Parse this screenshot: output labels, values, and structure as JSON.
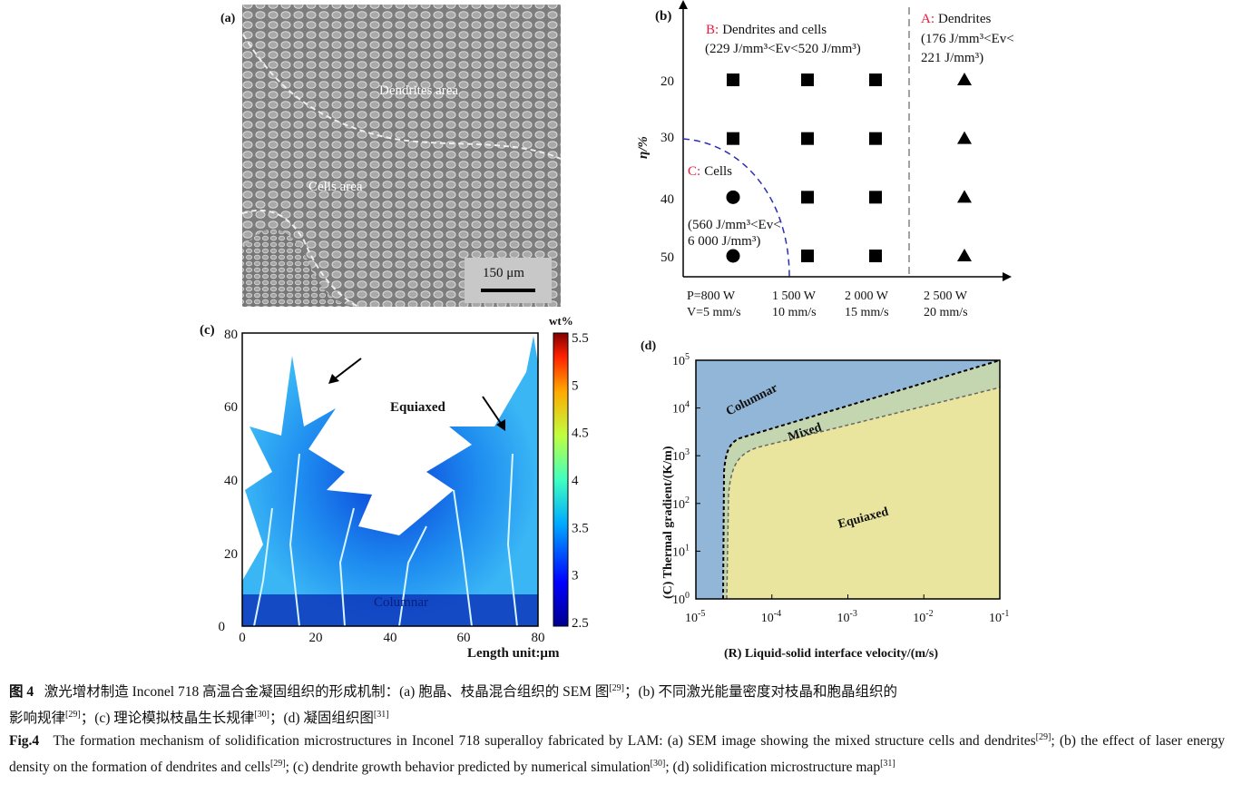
{
  "panel_a": {
    "label": "(a)",
    "dendrites_label": "Dendrites area",
    "cells_label": "Cells area",
    "scale_bar": "150 μm"
  },
  "panel_b": {
    "label": "(b)",
    "ylabel": "η/%",
    "region_b": {
      "tag": "B:",
      "name": "Dendrites and cells",
      "range": "(229 J/mm³<Ev<520 J/mm³)"
    },
    "region_a": {
      "tag": "A:",
      "name": "Dendrites",
      "range1": "(176 J/mm³<Ev<",
      "range2": "221 J/mm³)"
    },
    "region_c": {
      "tag": "C:",
      "name": "Cells",
      "range1": "(560 J/mm³<Ev<",
      "range2": "6 000 J/mm³)"
    },
    "x_power": [
      "P=800 W",
      "1 500 W",
      "2 000 W",
      "2 500 W"
    ],
    "x_speed": [
      "V=5 mm/s",
      "10 mm/s",
      "15 mm/s",
      "20 mm/s"
    ],
    "y_ticks": [
      "20",
      "30",
      "40",
      "50"
    ],
    "tag_color": "#e8173a",
    "boundary_color": "#2b2fb5"
  },
  "panel_c": {
    "label": "(c)",
    "x_ticks": [
      "0",
      "20",
      "40",
      "60",
      "80"
    ],
    "y_ticks": [
      "0",
      "20",
      "40",
      "60",
      "80"
    ],
    "xlabel": "Length unit:μm",
    "colorbar_title": "wt%",
    "colorbar_ticks": [
      "5.5",
      "5",
      "4.5",
      "4",
      "3.5",
      "3",
      "2.5"
    ],
    "equiaxed_label": "Equiaxed",
    "columnar_label": "Columnar"
  },
  "panel_d": {
    "label": "(d)",
    "ylabel": "(C) Thermal gradient/(K/m)",
    "xlabel": "(R) Liquid-solid interface velocity/(m/s)",
    "x_ticks": [
      {
        "b": "10",
        "e": "-5"
      },
      {
        "b": "10",
        "e": "-4"
      },
      {
        "b": "10",
        "e": "-3"
      },
      {
        "b": "10",
        "e": "-2"
      },
      {
        "b": "10",
        "e": "-1"
      }
    ],
    "y_ticks": [
      {
        "b": "10",
        "e": "0"
      },
      {
        "b": "10",
        "e": "1"
      },
      {
        "b": "10",
        "e": "2"
      },
      {
        "b": "10",
        "e": "3"
      },
      {
        "b": "10",
        "e": "4"
      },
      {
        "b": "10",
        "e": "5"
      }
    ],
    "columnar_label": "Columnar",
    "mixed_label": "Mixed",
    "equiaxed_label": "Equiaxed",
    "colors": {
      "columnar": "#92b6d8",
      "mixed": "#c3d6b0",
      "equiaxed": "#e9e59f"
    }
  },
  "chart_data": {
    "type": "scatter",
    "x_categories": [
      "P=800 W, V=5 mm/s",
      "1 500 W, 10 mm/s",
      "2 000 W, 15 mm/s",
      "2 500 W, 20 mm/s"
    ],
    "ylabel": "η/%",
    "points": [
      {
        "x": 0,
        "y": 20,
        "marker": "square"
      },
      {
        "x": 1,
        "y": 20,
        "marker": "square"
      },
      {
        "x": 2,
        "y": 20,
        "marker": "square"
      },
      {
        "x": 3,
        "y": 20,
        "marker": "triangle"
      },
      {
        "x": 0,
        "y": 30,
        "marker": "square"
      },
      {
        "x": 1,
        "y": 30,
        "marker": "square"
      },
      {
        "x": 2,
        "y": 30,
        "marker": "square"
      },
      {
        "x": 3,
        "y": 30,
        "marker": "triangle"
      },
      {
        "x": 0,
        "y": 40,
        "marker": "circle"
      },
      {
        "x": 1,
        "y": 40,
        "marker": "square"
      },
      {
        "x": 2,
        "y": 40,
        "marker": "square"
      },
      {
        "x": 3,
        "y": 40,
        "marker": "triangle"
      },
      {
        "x": 0,
        "y": 50,
        "marker": "circle"
      },
      {
        "x": 1,
        "y": 50,
        "marker": "square"
      },
      {
        "x": 2,
        "y": 50,
        "marker": "square"
      },
      {
        "x": 3,
        "y": 50,
        "marker": "triangle"
      }
    ]
  },
  "caption": {
    "cn_label": "图 4",
    "cn_line1": "激光增材制造 Inconel 718 高温合金凝固组织的形成机制：(a) 胞晶、枝晶混合组织的 SEM 图",
    "cn_ref1": "[29]",
    "cn_line1b": "；(b) 不同激光能量密度对枝晶和胞晶组织的",
    "cn_line2a": "影响规律",
    "cn_ref2": "[29]",
    "cn_line2b": "；(c) 理论模拟枝晶生长规律",
    "cn_ref3": "[30]",
    "cn_line2c": "；(d) 凝固组织图",
    "cn_ref4": "[31]",
    "en_label": "Fig.4",
    "en_a": "The formation mechanism of solidification microstructures in Inconel 718 superalloy fabricated by LAM: (a) SEM image showing the mixed structure cells and dendrites",
    "en_ref1": "[29]",
    "en_b": "; (b) the effect of laser energy density on the formation of dendrites and cells",
    "en_ref2": "[29]",
    "en_c": "; (c) dendrite growth behavior predicted by numerical simulation",
    "en_ref3": "[30]",
    "en_d": "; (d) solidification microstructure map",
    "en_ref4": "[31]"
  }
}
